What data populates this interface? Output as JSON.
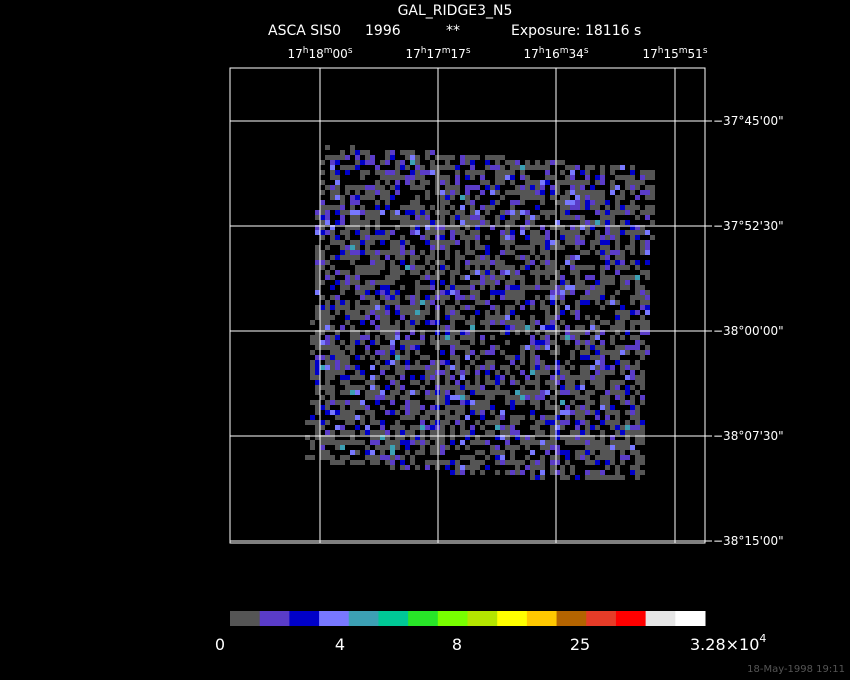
{
  "header": {
    "title": "GAL_RIDGE3_N5",
    "instrument": "ASCA SIS0",
    "year": "1996",
    "mark": "**",
    "exposure": "Exposure: 18116 s"
  },
  "ra_labels": [
    [
      "17",
      "h",
      "18",
      "m",
      "00",
      "s"
    ],
    [
      "17",
      "h",
      "17",
      "m",
      "17",
      "s"
    ],
    [
      "17",
      "h",
      "16",
      "m",
      "34",
      "s"
    ],
    [
      "17",
      "h",
      "15",
      "m",
      "51",
      "s"
    ]
  ],
  "dec_labels": [
    "−37°45'00\"",
    "−37°52'30\"",
    "−38°00'00\"",
    "−38°07'30\"",
    "−38°15'00\""
  ],
  "colorbar": {
    "colors": [
      "#555555",
      "#5a3cc8",
      "#0000c8",
      "#7878ff",
      "#3ca0b4",
      "#00c896",
      "#28e628",
      "#78ff00",
      "#b4e600",
      "#ffff00",
      "#ffc800",
      "#b46400",
      "#e63c28",
      "#ff0000",
      "#e6e6e6",
      "#ffffff"
    ],
    "labels": [
      "0",
      "4",
      "8",
      "25",
      {
        "base": "3.28×10",
        "exp": "4"
      }
    ]
  },
  "footer": "18-May-1998 19:11"
}
